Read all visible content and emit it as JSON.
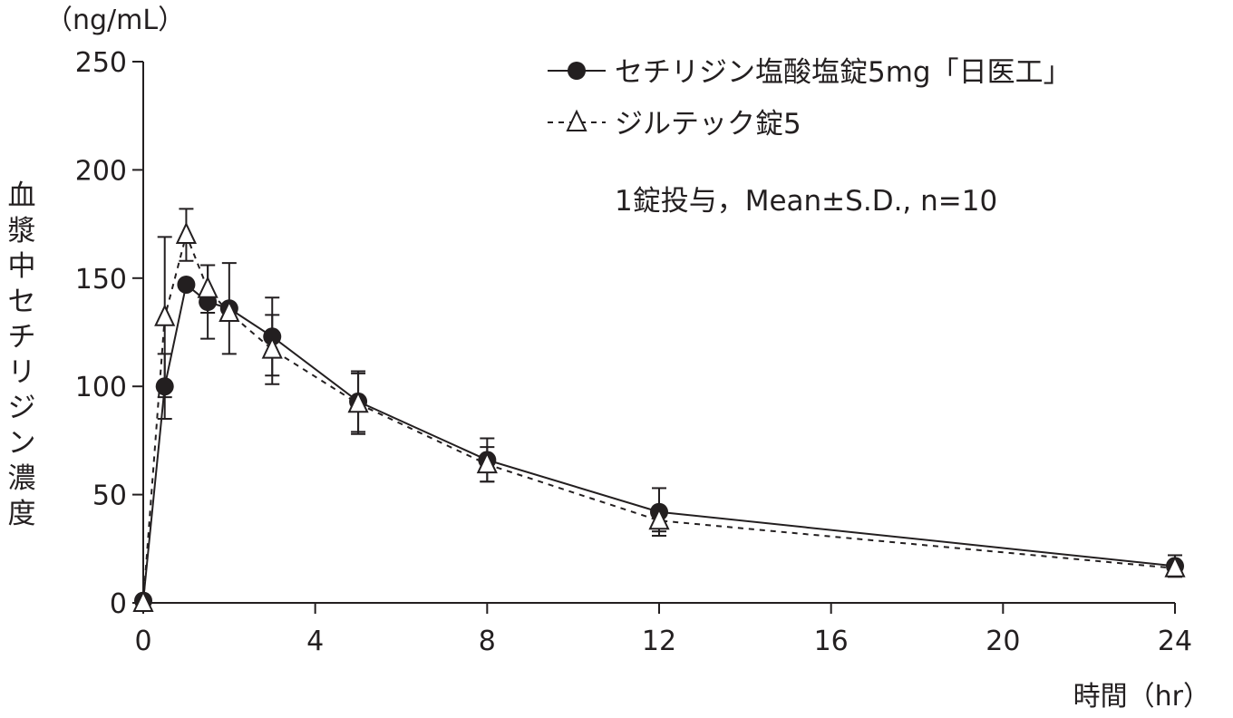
{
  "chart_data": {
    "type": "line",
    "y_unit": "（ng/mL）",
    "ylabel": "血漿中セチリジン濃度",
    "xlabel": "時間（hr）",
    "ylim": [
      0,
      250
    ],
    "xlim": [
      0,
      24
    ],
    "y_ticks": [
      "0",
      "50",
      "100",
      "150",
      "200",
      "250"
    ],
    "x_ticks": [
      "0",
      "4",
      "8",
      "12",
      "16",
      "20",
      "24"
    ],
    "annotation": "1錠投与，Mean±S.D., n=10",
    "grid": false,
    "legend_position": "top-right",
    "series": [
      {
        "name": "セチリジン塩酸塩錠5mg「日医工」",
        "marker": "filled-circle",
        "line_style": "solid",
        "color": "#231f20",
        "points": [
          {
            "x": 0,
            "y": 1,
            "sd": 0
          },
          {
            "x": 0.5,
            "y": 100,
            "sd": 15
          },
          {
            "x": 1,
            "y": 147,
            "sd": 0
          },
          {
            "x": 1.5,
            "y": 139,
            "sd": 17
          },
          {
            "x": 2,
            "y": 136,
            "sd": 21
          },
          {
            "x": 3,
            "y": 123,
            "sd": 18
          },
          {
            "x": 5,
            "y": 93,
            "sd": 14
          },
          {
            "x": 8,
            "y": 66,
            "sd": 10
          },
          {
            "x": 12,
            "y": 42,
            "sd": 11
          },
          {
            "x": 24,
            "y": 17,
            "sd": 5
          }
        ]
      },
      {
        "name": "ジルテック錠5",
        "marker": "open-triangle",
        "line_style": "dashed",
        "color": "#231f20",
        "points": [
          {
            "x": 0,
            "y": 0,
            "sd": 0
          },
          {
            "x": 0.5,
            "y": 132,
            "sd": 37
          },
          {
            "x": 1,
            "y": 170,
            "sd": 12
          },
          {
            "x": 1.5,
            "y": 145,
            "sd": 11
          },
          {
            "x": 2,
            "y": 134,
            "sd": 0
          },
          {
            "x": 3,
            "y": 117,
            "sd": 16
          },
          {
            "x": 5,
            "y": 92,
            "sd": 14
          },
          {
            "x": 8,
            "y": 64,
            "sd": 8
          },
          {
            "x": 12,
            "y": 38,
            "sd": 5
          },
          {
            "x": 24,
            "y": 16,
            "sd": 2
          }
        ]
      }
    ]
  }
}
